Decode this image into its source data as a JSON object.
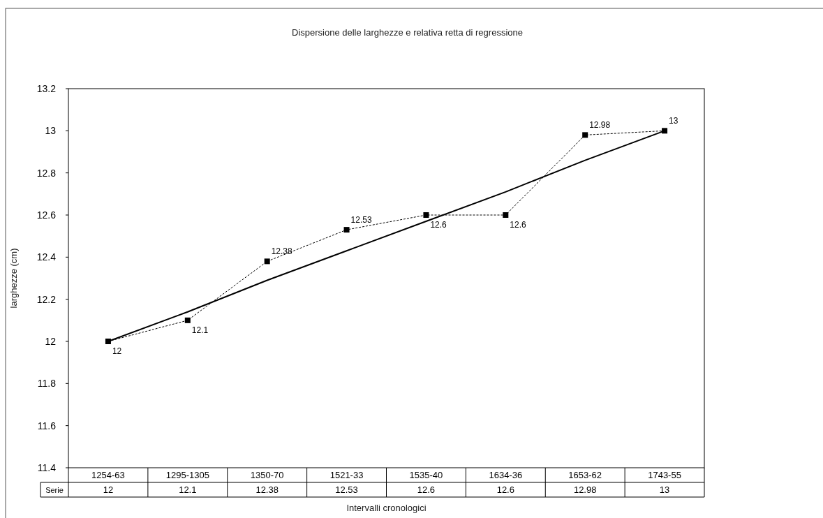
{
  "chart_data": {
    "type": "line",
    "title": "Dispersione delle larghezze e relativa retta di regressione",
    "xlabel": "Intervalli cronologici",
    "ylabel": "larghezze (cm)",
    "categories": [
      "1254-63",
      "1295-1305",
      "1350-70",
      "1521-33",
      "1535-40",
      "1634-36",
      "1653-62",
      "1743-55"
    ],
    "series": [
      {
        "name": "Serie",
        "color": "#000000",
        "values": [
          12,
          12.1,
          12.38,
          12.53,
          12.6,
          12.6,
          12.98,
          13
        ],
        "value_labels": [
          "12",
          "12.1",
          "12.38",
          "12.53",
          "12.6",
          "12.6",
          "12.98",
          "13"
        ],
        "marker": "square",
        "line_style": "dashed"
      },
      {
        "type": "line",
        "color": "#000000",
        "values": [
          12,
          12.14,
          12.29,
          12.43,
          12.57,
          12.71,
          12.86,
          13
        ],
        "marker": "none",
        "line_style": "solid"
      }
    ],
    "ylim": [
      11.4,
      13.2
    ],
    "yticks": [
      11.4,
      11.6,
      11.8,
      12,
      12.2,
      12.4,
      12.6,
      12.8,
      13,
      13.2
    ],
    "grid": false,
    "legend": "bottom left"
  }
}
